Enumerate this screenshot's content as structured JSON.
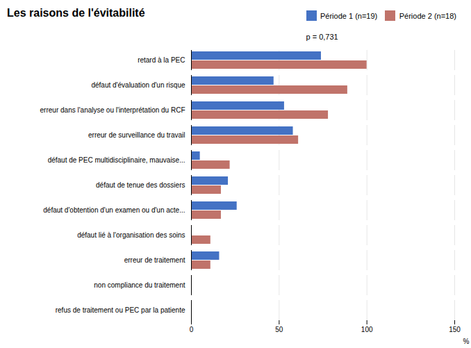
{
  "chart_data": {
    "type": "bar",
    "orientation": "horizontal",
    "title": "Les raisons de l'évitabilité",
    "categories": [
      "retard à la PEC",
      "défaut d'évaluation d'un risque",
      "erreur dans l'analyse ou l'interprétation du RCF",
      "erreur de surveillance du travail",
      "défaut de PEC multidisciplinaire, mauvaise...",
      "défaut de tenue des dossiers",
      "défaut d'obtention d'un examen ou d'un acte...",
      "défaut lié à l'organisation des soins",
      "erreur de traitement",
      "non compliance du traitement",
      "refus de traitement ou PEC par la patiente"
    ],
    "series": [
      {
        "name": "Période 1 (n=19)",
        "color": "#4472C4",
        "values": [
          74,
          47,
          53,
          58,
          5,
          21,
          26,
          0,
          16,
          0,
          0
        ]
      },
      {
        "name": "Période 2 (n=18)",
        "color": "#C0736A",
        "values": [
          100,
          89,
          78,
          61,
          22,
          17,
          17,
          11,
          11,
          0,
          0
        ]
      }
    ],
    "xlim": [
      0,
      150
    ],
    "xticks": [
      0,
      50,
      100,
      150
    ],
    "xlabel": "%",
    "annotation": "p = 0,731",
    "grid": true,
    "legend": "upper right"
  }
}
